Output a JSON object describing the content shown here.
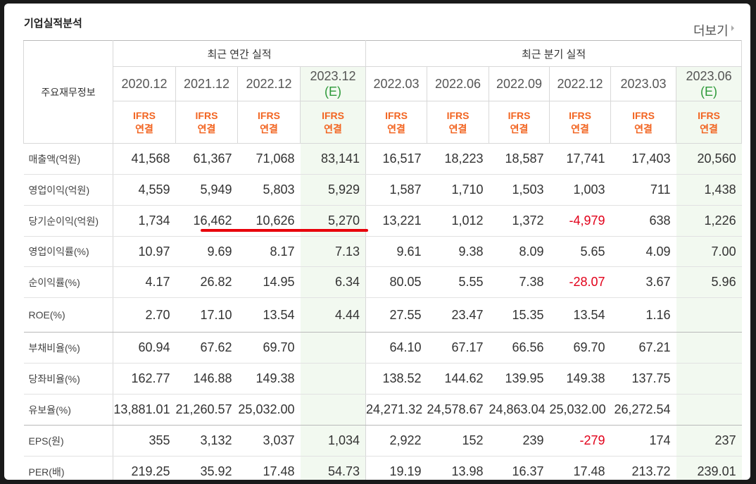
{
  "title": "기업실적분석",
  "more": "더보기",
  "table": {
    "header": {
      "label": "주요재무정보",
      "groups": [
        {
          "label": "최근 연간 실적",
          "span": 4
        },
        {
          "label": "최근 분기 실적",
          "span": 6
        }
      ]
    },
    "columns": [
      {
        "period": "2020.12",
        "basis": "IFRS",
        "consolidation": "연결"
      },
      {
        "period": "2021.12",
        "basis": "IFRS",
        "consolidation": "연결"
      },
      {
        "period": "2022.12",
        "basis": "IFRS",
        "consolidation": "연결"
      },
      {
        "period": "2023.12",
        "note": "(E)",
        "basis": "IFRS",
        "consolidation": "연결"
      },
      {
        "period": "2022.03",
        "basis": "IFRS",
        "consolidation": "연결"
      },
      {
        "period": "2022.06",
        "basis": "IFRS",
        "consolidation": "연결"
      },
      {
        "period": "2022.09",
        "basis": "IFRS",
        "consolidation": "연결"
      },
      {
        "period": "2022.12",
        "basis": "IFRS",
        "consolidation": "연결"
      },
      {
        "period": "2023.03",
        "basis": "IFRS",
        "consolidation": "연결"
      },
      {
        "period": "2023.06",
        "note": "(E)",
        "basis": "IFRS",
        "consolidation": "연결"
      }
    ],
    "rows": [
      {
        "label": "매출액(억원)",
        "values": [
          "41,568",
          "61,367",
          "71,068",
          "83,141",
          "16,517",
          "18,223",
          "18,587",
          "17,741",
          "17,403",
          "20,560"
        ]
      },
      {
        "label": "영업이익(억원)",
        "values": [
          "4,559",
          "5,949",
          "5,803",
          "5,929",
          "1,587",
          "1,710",
          "1,503",
          "1,003",
          "711",
          "1,438"
        ]
      },
      {
        "label": "당기순이익(억원)",
        "values": [
          "1,734",
          "16,462",
          "10,626",
          "5,270",
          "13,221",
          "1,012",
          "1,372",
          "-4,979",
          "638",
          "1,226"
        ]
      },
      {
        "label": "영업이익률(%)",
        "values": [
          "10.97",
          "9.69",
          "8.17",
          "7.13",
          "9.61",
          "9.38",
          "8.09",
          "5.65",
          "4.09",
          "7.00"
        ]
      },
      {
        "label": "순이익률(%)",
        "values": [
          "4.17",
          "26.82",
          "14.95",
          "6.34",
          "80.05",
          "5.55",
          "7.38",
          "-28.07",
          "3.67",
          "5.96"
        ]
      },
      {
        "label": "ROE(%)",
        "values": [
          "2.70",
          "17.10",
          "13.54",
          "4.44",
          "27.55",
          "23.47",
          "15.35",
          "13.54",
          "1.16",
          null
        ]
      },
      {
        "label": "부채비율(%)",
        "values": [
          "60.94",
          "67.62",
          "69.70",
          null,
          "64.10",
          "67.17",
          "66.56",
          "69.70",
          "67.21",
          null
        ]
      },
      {
        "label": "당좌비율(%)",
        "values": [
          "162.77",
          "146.88",
          "149.38",
          null,
          "138.52",
          "144.62",
          "139.95",
          "149.38",
          "137.75",
          null
        ]
      },
      {
        "label": "유보율(%)",
        "values": [
          "13,881.01",
          "21,260.57",
          "25,032.00",
          null,
          "24,271.32",
          "24,578.67",
          "24,863.04",
          "25,032.00",
          "26,272.54",
          null
        ]
      },
      {
        "label": "EPS(원)",
        "values": [
          "355",
          "3,132",
          "3,037",
          "1,034",
          "2,922",
          "152",
          "239",
          "-279",
          "174",
          "237"
        ]
      },
      {
        "label": "PER(배)",
        "values": [
          "219.25",
          "35.92",
          "17.48",
          "54.73",
          "19.19",
          "13.98",
          "16.37",
          "17.48",
          "213.72",
          "239.01"
        ]
      }
    ]
  }
}
